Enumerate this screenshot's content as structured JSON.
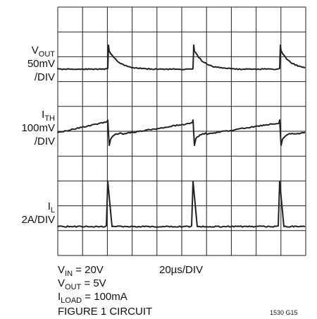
{
  "traces": [
    {
      "symbol": "V",
      "sub": "OUT",
      "lines": [
        "50mV",
        "/DIV"
      ]
    },
    {
      "symbol": "I",
      "sub": "TH",
      "lines": [
        "100mV",
        "/DIV"
      ]
    },
    {
      "symbol": "I",
      "sub": "L",
      "lines": [
        "2A/DIV"
      ]
    }
  ],
  "timebase": "20µs/DIV",
  "conditions": [
    {
      "symbol": "V",
      "sub": "IN",
      "rest": " = 20V"
    },
    {
      "symbol": "V",
      "sub": "OUT",
      "rest": " = 5V"
    },
    {
      "symbol": "I",
      "sub": "LOAD",
      "rest": " = 100mA"
    }
  ],
  "figure": "FIGURE 1 CIRCUIT",
  "figure_id": "1530 G15"
}
